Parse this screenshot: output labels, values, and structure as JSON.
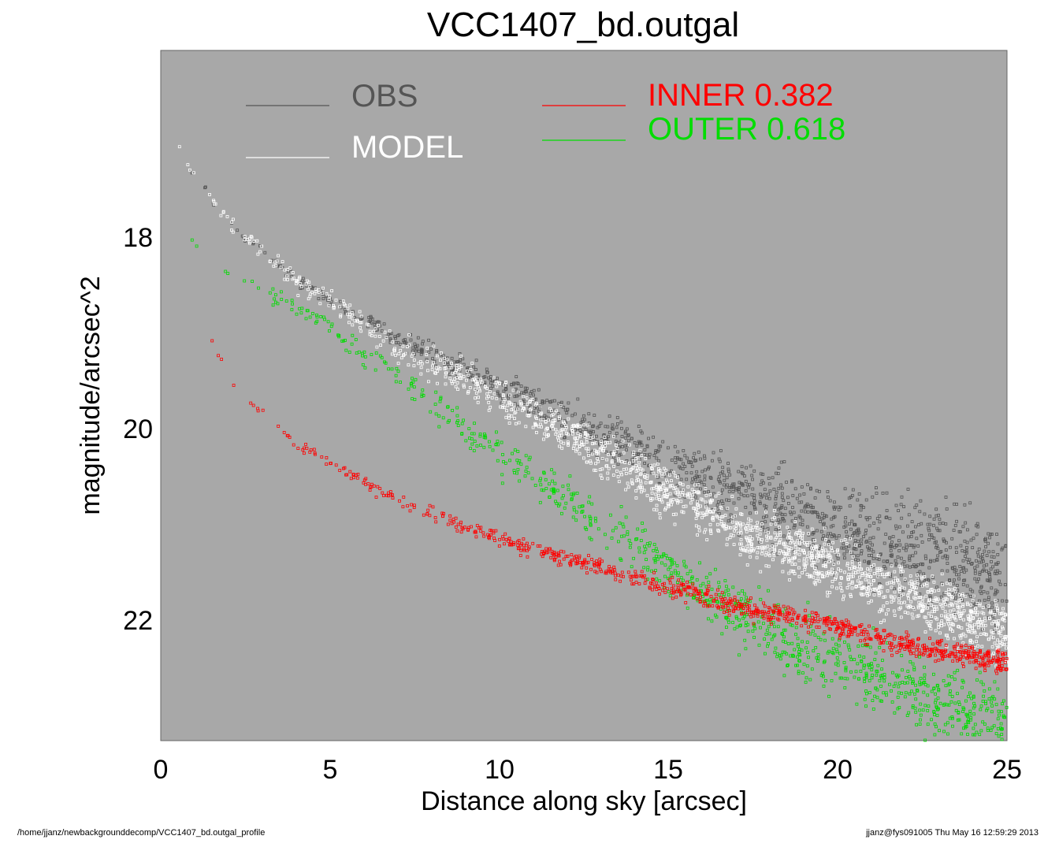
{
  "chart_data": {
    "type": "scatter",
    "title": "VCC1407_bd.outgal",
    "xlabel": "Distance along sky [arcsec]",
    "ylabel": "magnitude/arcsec^2",
    "xlim": [
      0,
      25
    ],
    "ylim": [
      23.3,
      16.1
    ],
    "y_inverted": true,
    "x_ticks": [
      0,
      5,
      10,
      15,
      20,
      25
    ],
    "x_tick_labels": [
      "0",
      "5",
      "10",
      "15",
      "20",
      "25"
    ],
    "y_ticks": [
      18,
      20,
      22
    ],
    "y_tick_labels": [
      "18",
      "20",
      "22"
    ],
    "grid": false,
    "background": "#a8a8a8",
    "legend": {
      "placement": "top",
      "entries": [
        {
          "label": "OBS",
          "color": "#555555"
        },
        {
          "label": "MODEL",
          "color": "#ffffff"
        },
        {
          "label": "INNER  0.382",
          "color": "#ff0000"
        },
        {
          "label": "OUTER  0.618",
          "color": "#00dd00"
        }
      ]
    },
    "series": [
      {
        "name": "OBS",
        "color": "#555555",
        "x": [
          0.2,
          1,
          2,
          3,
          4,
          5,
          7,
          10,
          13,
          15,
          17,
          20,
          22,
          25
        ],
        "y": [
          16.9,
          17.4,
          17.9,
          18.2,
          18.5,
          18.7,
          19.1,
          19.6,
          20.1,
          20.4,
          20.7,
          21.1,
          21.3,
          21.6
        ],
        "scatter_growth": 0.9
      },
      {
        "name": "MODEL",
        "color": "#ffffff",
        "x": [
          0.2,
          1,
          2,
          3,
          4,
          5,
          7,
          10,
          13,
          15,
          17,
          20,
          22,
          25
        ],
        "y": [
          16.9,
          17.4,
          17.9,
          18.2,
          18.5,
          18.7,
          19.2,
          19.7,
          20.3,
          20.7,
          21.1,
          21.5,
          21.8,
          22.2
        ],
        "spread": [
          0.05,
          0.08,
          0.12,
          0.15,
          0.18,
          0.2,
          0.25,
          0.3,
          0.35,
          0.38,
          0.4,
          0.42,
          0.44,
          0.45
        ]
      },
      {
        "name": "INNER",
        "color": "#ff0000",
        "x": [
          0.45,
          1,
          1.5,
          2,
          3,
          4,
          5,
          7,
          10,
          13,
          15,
          17,
          20,
          22,
          25
        ],
        "y": [
          18.0,
          18.6,
          19.1,
          19.5,
          19.9,
          20.2,
          20.4,
          20.8,
          21.2,
          21.5,
          21.7,
          21.9,
          22.1,
          22.3,
          22.5
        ],
        "spread": [
          0.03,
          0.04,
          0.05,
          0.06,
          0.07,
          0.08,
          0.09,
          0.1,
          0.12,
          0.13,
          0.14,
          0.15,
          0.16,
          0.17,
          0.18
        ]
      },
      {
        "name": "OUTER",
        "color": "#00dd00",
        "x": [
          0.7,
          1,
          2,
          3,
          4,
          5,
          7,
          10,
          13,
          15,
          17,
          20,
          22,
          25
        ],
        "y": [
          18.05,
          18.1,
          18.4,
          18.6,
          18.8,
          19.0,
          19.5,
          20.3,
          21.0,
          21.5,
          22.0,
          22.5,
          22.8,
          23.1
        ],
        "spread": [
          0.03,
          0.05,
          0.08,
          0.1,
          0.12,
          0.15,
          0.2,
          0.3,
          0.38,
          0.45,
          0.5,
          0.55,
          0.58,
          0.6
        ]
      }
    ]
  },
  "footer": {
    "left": "/home/jjanz/newbackgrounddecomp/VCC1407_bd.outgal_profile",
    "right": "jjanz@fys091005  Thu May 16 12:59:29 2013"
  }
}
